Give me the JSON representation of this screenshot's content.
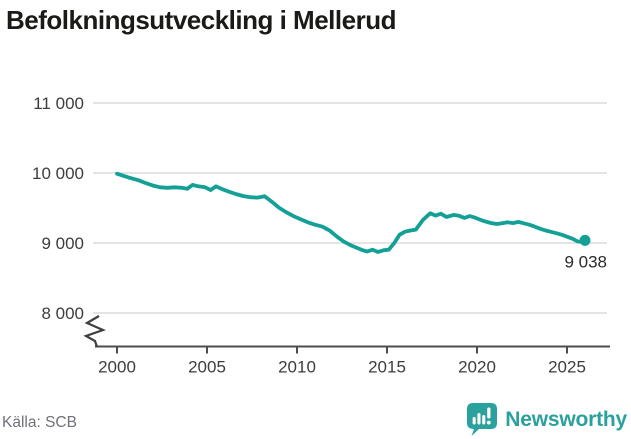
{
  "header": {
    "title": "Befolkningsutveckling i Mellerud"
  },
  "footer": {
    "source": "Källa: SCB",
    "logo_text": "Newsworthy"
  },
  "colors": {
    "line": "#14a096",
    "logo": "#2ba19e",
    "grid": "#dcdcdc",
    "axis": "#4c4c4c",
    "tick_text": "#3d3d3d",
    "end_label": "#2a2a2a"
  },
  "chart_data": {
    "type": "line",
    "title": "Befolkningsutveckling i Mellerud",
    "xlabel": "",
    "ylabel": "",
    "grid": "horizontal",
    "legend": "none",
    "axis_break_bottom_left": true,
    "xlim": [
      2000,
      2026
    ],
    "ylim": [
      8000,
      11000
    ],
    "x_tick_years": [
      2000,
      2005,
      2010,
      2015,
      2020,
      2025
    ],
    "x_tick_labels": [
      "2000",
      "2005",
      "2010",
      "2015",
      "2020",
      "2025"
    ],
    "y_tick_values": [
      11000,
      10000,
      9000,
      8000
    ],
    "y_tick_labels": [
      "11 000",
      "10 000",
      "9 000",
      "8 000"
    ],
    "series": [
      {
        "points": [
          [
            2000.0,
            9990
          ],
          [
            2000.4,
            9955
          ],
          [
            2000.8,
            9925
          ],
          [
            2001.2,
            9895
          ],
          [
            2001.6,
            9855
          ],
          [
            2002.0,
            9820
          ],
          [
            2002.4,
            9795
          ],
          [
            2002.8,
            9788
          ],
          [
            2003.2,
            9795
          ],
          [
            2003.6,
            9788
          ],
          [
            2003.9,
            9775
          ],
          [
            2004.2,
            9830
          ],
          [
            2004.5,
            9810
          ],
          [
            2004.9,
            9795
          ],
          [
            2005.2,
            9755
          ],
          [
            2005.5,
            9810
          ],
          [
            2005.8,
            9775
          ],
          [
            2006.2,
            9735
          ],
          [
            2006.6,
            9700
          ],
          [
            2007.0,
            9672
          ],
          [
            2007.4,
            9655
          ],
          [
            2007.8,
            9648
          ],
          [
            2008.2,
            9668
          ],
          [
            2008.6,
            9590
          ],
          [
            2009.0,
            9505
          ],
          [
            2009.4,
            9440
          ],
          [
            2009.8,
            9385
          ],
          [
            2010.2,
            9340
          ],
          [
            2010.6,
            9295
          ],
          [
            2011.0,
            9262
          ],
          [
            2011.4,
            9235
          ],
          [
            2011.8,
            9180
          ],
          [
            2012.2,
            9095
          ],
          [
            2012.6,
            9020
          ],
          [
            2013.0,
            8965
          ],
          [
            2013.3,
            8935
          ],
          [
            2013.6,
            8902
          ],
          [
            2013.9,
            8878
          ],
          [
            2014.2,
            8905
          ],
          [
            2014.5,
            8872
          ],
          [
            2014.8,
            8895
          ],
          [
            2015.1,
            8905
          ],
          [
            2015.4,
            8998
          ],
          [
            2015.7,
            9118
          ],
          [
            2016.0,
            9162
          ],
          [
            2016.3,
            9178
          ],
          [
            2016.6,
            9192
          ],
          [
            2017.0,
            9330
          ],
          [
            2017.4,
            9425
          ],
          [
            2017.7,
            9392
          ],
          [
            2018.0,
            9418
          ],
          [
            2018.3,
            9372
          ],
          [
            2018.7,
            9402
          ],
          [
            2019.0,
            9388
          ],
          [
            2019.3,
            9358
          ],
          [
            2019.6,
            9385
          ],
          [
            2019.9,
            9362
          ],
          [
            2020.2,
            9330
          ],
          [
            2020.5,
            9305
          ],
          [
            2020.8,
            9285
          ],
          [
            2021.1,
            9272
          ],
          [
            2021.4,
            9282
          ],
          [
            2021.7,
            9295
          ],
          [
            2022.0,
            9285
          ],
          [
            2022.3,
            9302
          ],
          [
            2022.6,
            9282
          ],
          [
            2022.9,
            9262
          ],
          [
            2023.2,
            9235
          ],
          [
            2023.5,
            9205
          ],
          [
            2023.8,
            9180
          ],
          [
            2024.1,
            9160
          ],
          [
            2024.4,
            9140
          ],
          [
            2024.7,
            9118
          ],
          [
            2025.0,
            9090
          ],
          [
            2025.3,
            9062
          ],
          [
            2025.6,
            9022
          ],
          [
            2025.8,
            9018
          ],
          [
            2026.0,
            9038
          ]
        ]
      }
    ],
    "end_point": {
      "year": 2026,
      "value": 9038,
      "label": "9 038"
    }
  }
}
